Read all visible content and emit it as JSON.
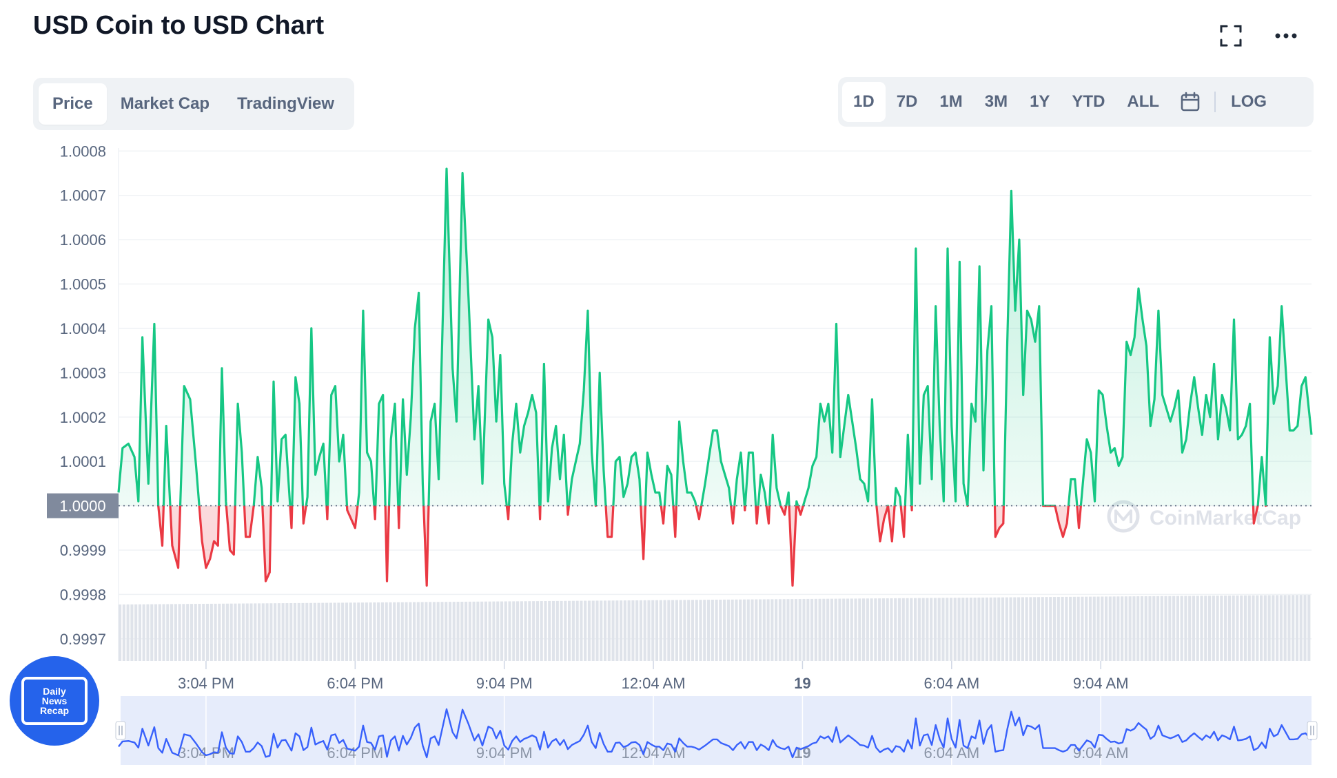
{
  "header": {
    "title": "USD Coin to USD Chart",
    "fullscreen_icon": "fullscreen-icon",
    "more_icon": "more-dots-icon"
  },
  "tabs_left": [
    {
      "label": "Price",
      "active": true
    },
    {
      "label": "Market Cap",
      "active": false
    },
    {
      "label": "TradingView",
      "active": false
    }
  ],
  "tabs_right": [
    {
      "label": "1D",
      "active": true
    },
    {
      "label": "7D",
      "active": false
    },
    {
      "label": "1M",
      "active": false
    },
    {
      "label": "3M",
      "active": false
    },
    {
      "label": "1Y",
      "active": false
    },
    {
      "label": "YTD",
      "active": false
    },
    {
      "label": "ALL",
      "active": false
    }
  ],
  "calendar_icon": "calendar-icon",
  "log_label": "LOG",
  "watermark": "CoinMarketCap",
  "badge": {
    "line1": "Daily",
    "line2": "News",
    "line3": "Recap"
  },
  "colors": {
    "up": "#16c784",
    "down": "#ea3943",
    "navigator": "#3861fb",
    "reference_label_bg": "#808a9d"
  },
  "chart_data": {
    "type": "line",
    "title": "USD Coin to USD Chart",
    "series_metric": "Price",
    "range": "1D",
    "reference_price": 1.0,
    "reference_label": "1.0000",
    "ylim": [
      0.99965,
      1.00083
    ],
    "y_ticks": [
      1.0008,
      1.0007,
      1.0006,
      1.0005,
      1.0004,
      1.0003,
      1.0002,
      1.0001,
      1.0,
      0.9999,
      0.9998,
      0.9997
    ],
    "y_tick_labels": [
      "1.0008",
      "1.0007",
      "1.0006",
      "1.0005",
      "1.0004",
      "1.0003",
      "1.0002",
      "1.0001",
      "1.0000",
      "0.9999",
      "0.9998",
      "0.9997"
    ],
    "x_ticks": [
      {
        "hour": 3.0,
        "label": "3:04 PM",
        "bold": false
      },
      {
        "hour": 6.0,
        "label": "6:04 PM",
        "bold": false
      },
      {
        "hour": 9.0,
        "label": "9:04 PM",
        "bold": false
      },
      {
        "hour": 12.0,
        "label": "12:04 AM",
        "bold": false
      },
      {
        "hour": 15.0,
        "label": "19",
        "bold": true
      },
      {
        "hour": 18.0,
        "label": "6:04 AM",
        "bold": false
      },
      {
        "hour": 21.0,
        "label": "9:04 AM",
        "bold": false
      }
    ],
    "grid": true,
    "x_domain_hours": [
      1.24,
      25.24
    ],
    "price": [
      [
        1.24,
        1.00003
      ],
      [
        1.32,
        1.00013
      ],
      [
        1.44,
        1.00014
      ],
      [
        1.56,
        1.00011
      ],
      [
        1.64,
        1.00001
      ],
      [
        1.72,
        1.00038
      ],
      [
        1.84,
        1.00005
      ],
      [
        1.96,
        1.00041
      ],
      [
        2.04,
        1.0
      ],
      [
        2.12,
        0.99991
      ],
      [
        2.2,
        1.00018
      ],
      [
        2.32,
        0.99991
      ],
      [
        2.44,
        0.99986
      ],
      [
        2.56,
        1.00027
      ],
      [
        2.68,
        1.00024
      ],
      [
        2.8,
        1.00009
      ],
      [
        2.92,
        0.99992
      ],
      [
        3.0,
        0.99986
      ],
      [
        3.08,
        0.99988
      ],
      [
        3.16,
        0.99992
      ],
      [
        3.24,
        0.99991
      ],
      [
        3.32,
        1.00031
      ],
      [
        3.4,
        1.00001
      ],
      [
        3.48,
        0.9999
      ],
      [
        3.56,
        0.99989
      ],
      [
        3.64,
        1.00023
      ],
      [
        3.72,
        1.00012
      ],
      [
        3.8,
        0.99993
      ],
      [
        3.88,
        0.99993
      ],
      [
        3.96,
        1.0
      ],
      [
        4.04,
        1.00011
      ],
      [
        4.12,
        1.00004
      ],
      [
        4.2,
        0.99983
      ],
      [
        4.28,
        0.99985
      ],
      [
        4.36,
        1.00028
      ],
      [
        4.44,
        1.00001
      ],
      [
        4.52,
        1.00015
      ],
      [
        4.6,
        1.00016
      ],
      [
        4.72,
        0.99995
      ],
      [
        4.8,
        1.00029
      ],
      [
        4.88,
        1.00023
      ],
      [
        4.96,
        0.99996
      ],
      [
        5.04,
        1.00002
      ],
      [
        5.12,
        1.0004
      ],
      [
        5.2,
        1.00007
      ],
      [
        5.28,
        1.00011
      ],
      [
        5.36,
        1.00014
      ],
      [
        5.44,
        0.99997
      ],
      [
        5.52,
        1.00025
      ],
      [
        5.6,
        1.00027
      ],
      [
        5.68,
        1.0001
      ],
      [
        5.76,
        1.00016
      ],
      [
        5.84,
        0.99999
      ],
      [
        6.0,
        0.99995
      ],
      [
        6.08,
        1.00003
      ],
      [
        6.16,
        1.00044
      ],
      [
        6.24,
        1.00012
      ],
      [
        6.32,
        1.0001
      ],
      [
        6.4,
        0.99997
      ],
      [
        6.48,
        1.00023
      ],
      [
        6.56,
        1.00025
      ],
      [
        6.64,
        0.99983
      ],
      [
        6.72,
        1.00015
      ],
      [
        6.8,
        1.00023
      ],
      [
        6.88,
        0.99995
      ],
      [
        6.96,
        1.00024
      ],
      [
        7.04,
        1.00007
      ],
      [
        7.12,
        1.0002
      ],
      [
        7.2,
        1.0004
      ],
      [
        7.28,
        1.00048
      ],
      [
        7.36,
        1.00005
      ],
      [
        7.44,
        0.99982
      ],
      [
        7.52,
        1.00019
      ],
      [
        7.6,
        1.00023
      ],
      [
        7.68,
        1.00006
      ],
      [
        7.84,
        1.00076
      ],
      [
        7.96,
        1.00031
      ],
      [
        8.04,
        1.00019
      ],
      [
        8.16,
        1.00075
      ],
      [
        8.28,
        1.00047
      ],
      [
        8.4,
        1.00015
      ],
      [
        8.48,
        1.00027
      ],
      [
        8.56,
        1.00005
      ],
      [
        8.68,
        1.00042
      ],
      [
        8.76,
        1.00038
      ],
      [
        8.84,
        1.00019
      ],
      [
        8.92,
        1.00034
      ],
      [
        9.0,
        1.00005
      ],
      [
        9.08,
        0.99997
      ],
      [
        9.16,
        1.00014
      ],
      [
        9.24,
        1.00023
      ],
      [
        9.32,
        1.00012
      ],
      [
        9.4,
        1.00018
      ],
      [
        9.48,
        1.00021
      ],
      [
        9.56,
        1.00025
      ],
      [
        9.64,
        1.00021
      ],
      [
        9.72,
        0.99997
      ],
      [
        9.8,
        1.00032
      ],
      [
        9.88,
        1.00001
      ],
      [
        9.96,
        1.00013
      ],
      [
        10.04,
        1.00018
      ],
      [
        10.12,
        1.00006
      ],
      [
        10.2,
        1.00016
      ],
      [
        10.28,
        0.99998
      ],
      [
        10.36,
        1.00006
      ],
      [
        10.44,
        1.0001
      ],
      [
        10.52,
        1.00014
      ],
      [
        10.6,
        1.00026
      ],
      [
        10.68,
        1.00044
      ],
      [
        10.76,
        1.00012
      ],
      [
        10.84,
        1.0
      ],
      [
        10.92,
        1.0003
      ],
      [
        11.0,
        1.00008
      ],
      [
        11.08,
        0.99993
      ],
      [
        11.16,
        0.99993
      ],
      [
        11.24,
        1.0001
      ],
      [
        11.32,
        1.00011
      ],
      [
        11.4,
        1.00002
      ],
      [
        11.48,
        1.00005
      ],
      [
        11.56,
        1.00011
      ],
      [
        11.64,
        1.00012
      ],
      [
        11.72,
        1.00006
      ],
      [
        11.8,
        0.99988
      ],
      [
        11.88,
        1.00012
      ],
      [
        11.96,
        1.00007
      ],
      [
        12.04,
        1.00003
      ],
      [
        12.12,
        1.00003
      ],
      [
        12.2,
        0.99996
      ],
      [
        12.28,
        1.00009
      ],
      [
        12.36,
        1.00007
      ],
      [
        12.44,
        0.99993
      ],
      [
        12.52,
        1.00019
      ],
      [
        12.6,
        1.0001
      ],
      [
        12.68,
        1.00003
      ],
      [
        12.76,
        1.00003
      ],
      [
        12.84,
        1.00001
      ],
      [
        12.92,
        0.99997
      ],
      [
        13.04,
        1.00005
      ],
      [
        13.12,
        1.00011
      ],
      [
        13.2,
        1.00017
      ],
      [
        13.28,
        1.00017
      ],
      [
        13.36,
        1.0001
      ],
      [
        13.44,
        1.00007
      ],
      [
        13.52,
        1.00004
      ],
      [
        13.6,
        0.99996
      ],
      [
        13.68,
        1.00006
      ],
      [
        13.76,
        1.00012
      ],
      [
        13.84,
        0.99999
      ],
      [
        13.92,
        1.00012
      ],
      [
        14.0,
        1.00012
      ],
      [
        14.08,
        0.99996
      ],
      [
        14.16,
        1.00007
      ],
      [
        14.24,
        1.00003
      ],
      [
        14.32,
        0.99996
      ],
      [
        14.4,
        1.00016
      ],
      [
        14.48,
        1.00004
      ],
      [
        14.56,
        1.0
      ],
      [
        14.64,
        0.99998
      ],
      [
        14.72,
        1.00003
      ],
      [
        14.8,
        0.99982
      ],
      [
        14.88,
        1.00001
      ],
      [
        14.96,
        0.99998
      ],
      [
        15.04,
        1.00001
      ],
      [
        15.12,
        1.00004
      ],
      [
        15.2,
        1.00009
      ],
      [
        15.28,
        1.00011
      ],
      [
        15.36,
        1.00023
      ],
      [
        15.44,
        1.00019
      ],
      [
        15.52,
        1.00023
      ],
      [
        15.6,
        1.00012
      ],
      [
        15.68,
        1.00041
      ],
      [
        15.76,
        1.00011
      ],
      [
        15.84,
        1.00018
      ],
      [
        15.92,
        1.00025
      ],
      [
        16.0,
        1.00019
      ],
      [
        16.08,
        1.00013
      ],
      [
        16.16,
        1.00006
      ],
      [
        16.24,
        1.00005
      ],
      [
        16.32,
        1.00001
      ],
      [
        16.4,
        1.00024
      ],
      [
        16.48,
        1.00001
      ],
      [
        16.56,
        0.99992
      ],
      [
        16.64,
        0.99997
      ],
      [
        16.72,
        1.0
      ],
      [
        16.8,
        0.99992
      ],
      [
        16.88,
        1.00004
      ],
      [
        16.96,
        1.00002
      ],
      [
        17.04,
        0.99993
      ],
      [
        17.12,
        1.00016
      ],
      [
        17.2,
        0.99999
      ],
      [
        17.28,
        1.00058
      ],
      [
        17.36,
        1.00005
      ],
      [
        17.44,
        1.00025
      ],
      [
        17.52,
        1.00027
      ],
      [
        17.6,
        1.00006
      ],
      [
        17.68,
        1.00045
      ],
      [
        17.76,
        1.00018
      ],
      [
        17.84,
        1.00001
      ],
      [
        17.92,
        1.00058
      ],
      [
        18.0,
        1.00018
      ],
      [
        18.08,
        1.00001
      ],
      [
        18.16,
        1.00055
      ],
      [
        18.24,
        1.00005
      ],
      [
        18.32,
        1.0
      ],
      [
        18.4,
        1.00023
      ],
      [
        18.48,
        1.00019
      ],
      [
        18.56,
        1.00054
      ],
      [
        18.64,
        1.00008
      ],
      [
        18.72,
        1.00035
      ],
      [
        18.8,
        1.00045
      ],
      [
        18.88,
        0.99993
      ],
      [
        18.96,
        0.99995
      ],
      [
        19.04,
        0.99996
      ],
      [
        19.12,
        1.00037
      ],
      [
        19.2,
        1.00071
      ],
      [
        19.28,
        1.00044
      ],
      [
        19.36,
        1.0006
      ],
      [
        19.44,
        1.00025
      ],
      [
        19.52,
        1.00044
      ],
      [
        19.6,
        1.00042
      ],
      [
        19.68,
        1.00037
      ],
      [
        19.76,
        1.00045
      ],
      [
        19.84,
        1.0
      ],
      [
        19.92,
        1.0
      ],
      [
        20.0,
        1.0
      ],
      [
        20.08,
        1.0
      ],
      [
        20.16,
        0.99996
      ],
      [
        20.24,
        0.99993
      ],
      [
        20.32,
        0.99996
      ],
      [
        20.4,
        1.00006
      ],
      [
        20.48,
        1.00006
      ],
      [
        20.56,
        0.99995
      ],
      [
        20.64,
        1.00005
      ],
      [
        20.72,
        1.00015
      ],
      [
        20.8,
        1.00012
      ],
      [
        20.88,
        1.00001
      ],
      [
        20.96,
        1.00026
      ],
      [
        21.04,
        1.00025
      ],
      [
        21.12,
        1.00018
      ],
      [
        21.2,
        1.00012
      ],
      [
        21.28,
        1.00013
      ],
      [
        21.36,
        1.00009
      ],
      [
        21.44,
        1.00011
      ],
      [
        21.52,
        1.00037
      ],
      [
        21.6,
        1.00034
      ],
      [
        21.68,
        1.00038
      ],
      [
        21.76,
        1.00049
      ],
      [
        21.84,
        1.00042
      ],
      [
        21.92,
        1.00036
      ],
      [
        22.0,
        1.00018
      ],
      [
        22.08,
        1.00024
      ],
      [
        22.16,
        1.00044
      ],
      [
        22.24,
        1.00025
      ],
      [
        22.32,
        1.00022
      ],
      [
        22.4,
        1.00019
      ],
      [
        22.48,
        1.00022
      ],
      [
        22.56,
        1.00026
      ],
      [
        22.64,
        1.00012
      ],
      [
        22.72,
        1.00015
      ],
      [
        22.8,
        1.00023
      ],
      [
        22.88,
        1.00029
      ],
      [
        22.96,
        1.00022
      ],
      [
        23.04,
        1.00016
      ],
      [
        23.12,
        1.00025
      ],
      [
        23.2,
        1.0002
      ],
      [
        23.28,
        1.00032
      ],
      [
        23.36,
        1.00015
      ],
      [
        23.44,
        1.00025
      ],
      [
        23.52,
        1.00022
      ],
      [
        23.6,
        1.00017
      ],
      [
        23.68,
        1.00042
      ],
      [
        23.76,
        1.00015
      ],
      [
        23.84,
        1.00016
      ],
      [
        23.92,
        1.00018
      ],
      [
        24.0,
        1.00023
      ],
      [
        24.08,
        0.99996
      ],
      [
        24.16,
        1.0
      ],
      [
        24.24,
        1.00011
      ],
      [
        24.32,
        1.0
      ],
      [
        24.4,
        1.00038
      ],
      [
        24.48,
        1.00023
      ],
      [
        24.56,
        1.00027
      ],
      [
        24.64,
        1.00045
      ],
      [
        24.72,
        1.00031
      ],
      [
        24.8,
        1.00017
      ],
      [
        24.88,
        1.00017
      ],
      [
        24.96,
        1.00018
      ],
      [
        25.04,
        1.00027
      ],
      [
        25.12,
        1.00029
      ],
      [
        25.24,
        1.00016
      ]
    ]
  }
}
